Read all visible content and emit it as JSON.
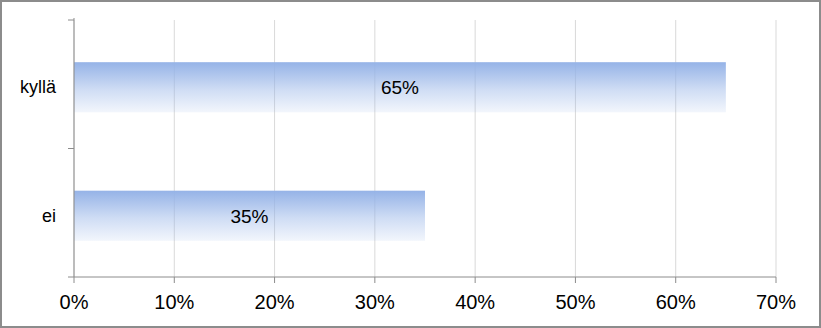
{
  "chart_data": {
    "type": "bar",
    "orientation": "horizontal",
    "categories": [
      "kyllä",
      "ei"
    ],
    "values": [
      65,
      35
    ],
    "value_labels": [
      "65%",
      "35%"
    ],
    "data_labels": true,
    "color": "#95b3e7",
    "xlim": [
      0,
      70
    ],
    "xticks": [
      {
        "value": 0,
        "label": "0%"
      },
      {
        "value": 10,
        "label": "10%"
      },
      {
        "value": 20,
        "label": "20%"
      },
      {
        "value": 30,
        "label": "30%"
      },
      {
        "value": 40,
        "label": "40%"
      },
      {
        "value": 50,
        "label": "50%"
      },
      {
        "value": 60,
        "label": "60%"
      },
      {
        "value": 70,
        "label": "70%"
      }
    ],
    "grid": true
  }
}
